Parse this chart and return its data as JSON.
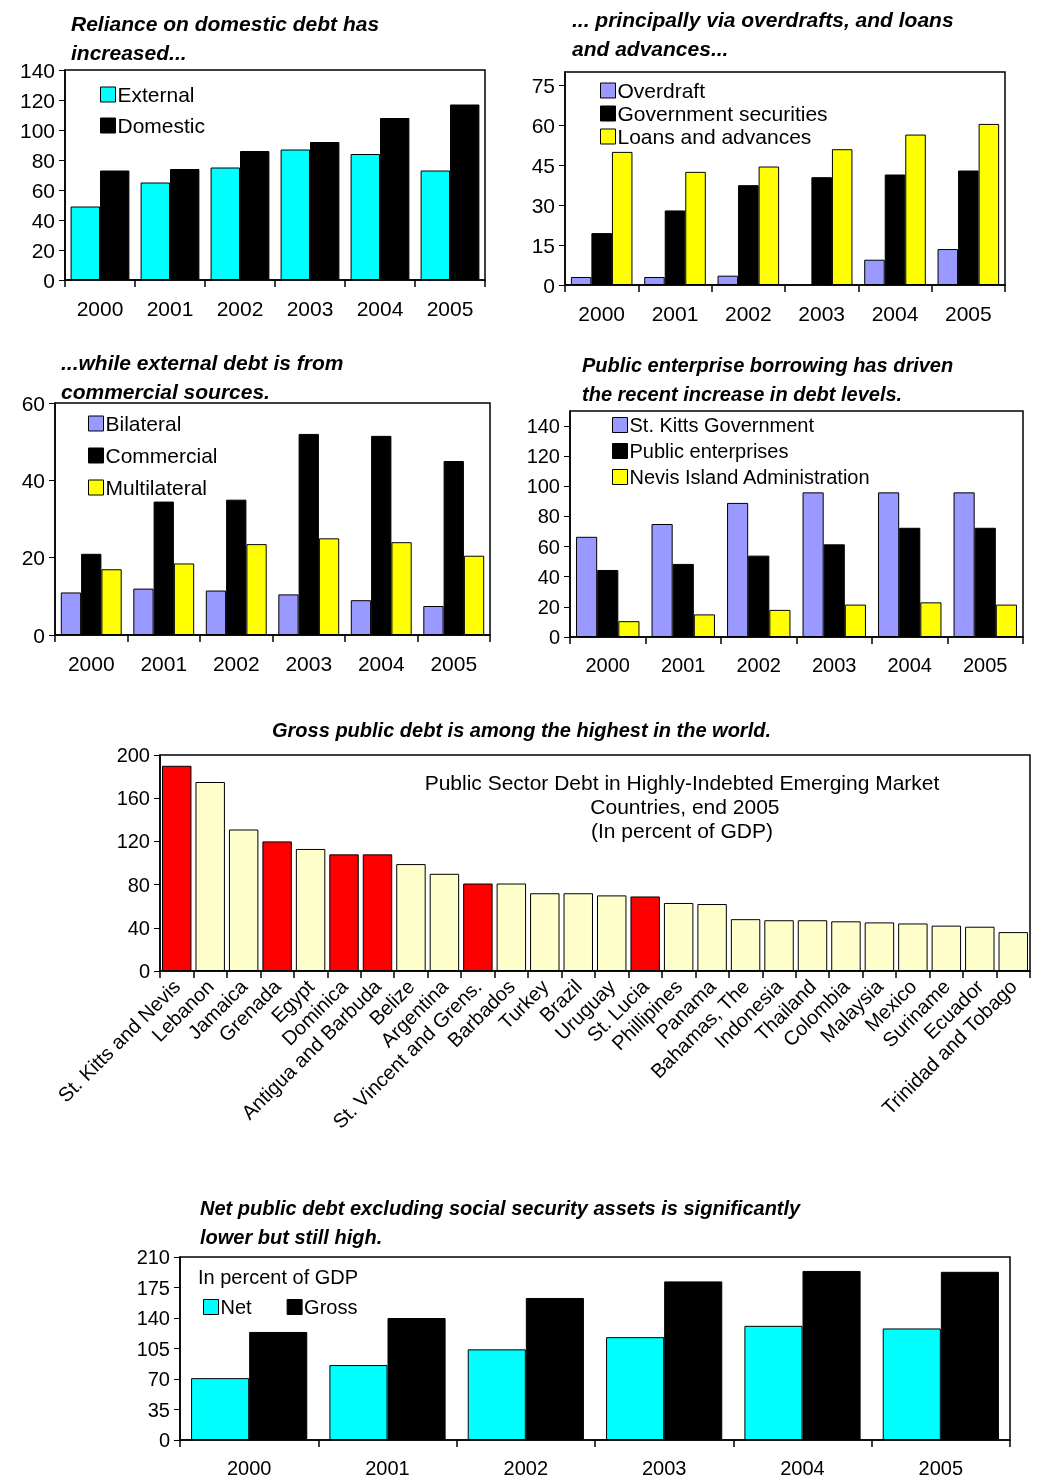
{
  "chart_data": [
    {
      "type": "bar",
      "title": "Reliance on domestic debt has increased...",
      "categories": [
        "2000",
        "2001",
        "2002",
        "2003",
        "2004",
        "2005"
      ],
      "ylim": [
        0,
        140
      ],
      "yticks": [
        0,
        20,
        40,
        60,
        80,
        100,
        120,
        140
      ],
      "legend": "top left",
      "grid": false,
      "series": [
        {
          "name": "External",
          "color": "#00ffff",
          "values": [
            49,
            65,
            75,
            87,
            84,
            73
          ]
        },
        {
          "name": "Domestic",
          "color": "#000000",
          "values": [
            73,
            74,
            86,
            92,
            108,
            117
          ]
        }
      ]
    },
    {
      "type": "bar",
      "title": "... principally via overdrafts, and loans and advances...",
      "categories": [
        "2000",
        "2001",
        "2002",
        "2003",
        "2004",
        "2005"
      ],
      "ylim": [
        0,
        80
      ],
      "yticks": [
        0,
        15,
        30,
        45,
        60,
        75
      ],
      "legend": "top left",
      "grid": false,
      "series": [
        {
          "name": "Overdraft",
          "color": "#9999ff",
          "values": [
            3,
            3,
            3.5,
            null,
            9.5,
            13.5
          ]
        },
        {
          "name": "Government securities",
          "color": "#000000",
          "values": [
            19.5,
            28,
            37.5,
            40.5,
            41.5,
            43
          ]
        },
        {
          "name": "Loans and advances",
          "color": "#ffff00",
          "values": [
            50,
            42.5,
            44.5,
            51,
            56.5,
            60.5
          ]
        }
      ]
    },
    {
      "type": "bar",
      "title": "...while external debt is from commercial sources.",
      "categories": [
        "2000",
        "2001",
        "2002",
        "2003",
        "2004",
        "2005"
      ],
      "ylim": [
        0,
        60
      ],
      "yticks": [
        0,
        20,
        40,
        60
      ],
      "legend": "top left",
      "grid": false,
      "series": [
        {
          "name": "Bilateral",
          "color": "#9999ff",
          "values": [
            11,
            12,
            11.5,
            10.5,
            9,
            7.5
          ]
        },
        {
          "name": "Commercial",
          "color": "#000000",
          "values": [
            21,
            34.5,
            35,
            52,
            51.5,
            45
          ]
        },
        {
          "name": "Multilateral",
          "color": "#ffff00",
          "values": [
            17,
            18.5,
            23.5,
            25,
            24,
            20.5
          ]
        }
      ]
    },
    {
      "type": "bar",
      "title": "Public enterprise borrowing has driven the recent increase in debt levels.",
      "categories": [
        "2000",
        "2001",
        "2002",
        "2003",
        "2004",
        "2005"
      ],
      "ylim": [
        0,
        150
      ],
      "yticks": [
        0,
        20,
        40,
        60,
        80,
        100,
        120,
        140
      ],
      "legend": "top left",
      "grid": false,
      "series": [
        {
          "name": "St. Kitts Government",
          "color": "#9999ff",
          "values": [
            66.5,
            75,
            89,
            96,
            96,
            96
          ]
        },
        {
          "name": "Public enterprises",
          "color": "#000000",
          "values": [
            44.5,
            48.5,
            54,
            61.5,
            72.5,
            72.5
          ]
        },
        {
          "name": "Nevis Island Administration",
          "color": "#ffff00",
          "values": [
            10.5,
            15,
            18,
            21.5,
            23,
            21.5
          ]
        }
      ]
    },
    {
      "type": "bar",
      "title": "Gross public debt is among the highest in the world.",
      "annotations": [
        "Public Sector Debt in Highly-Indebted Emerging Market Countries, end 2005\n(In percent of GDP)"
      ],
      "categories": [
        "St. Kitts and Nevis",
        "Lebanon",
        "Jamaica",
        "Grenada",
        "Egypt",
        "Dominica",
        "Antigua and Barbuda",
        "Belize",
        "Argentina",
        "St. Vincent and Grens.",
        "Barbados",
        "Turkey",
        "Brazil",
        "Uruguay",
        "St. Lucia",
        "Phillipines",
        "Panama",
        "Bahamas, The",
        "Indonesia",
        "Thailand",
        "Colombia",
        "Malaysia",
        "Mexico",
        "Suriname",
        "Ecuador",
        "Trinidad and Tobago"
      ],
      "ylim": [
        0,
        200
      ],
      "yticks": [
        0,
        40,
        80,
        120,
        160,
        200
      ],
      "grid": false,
      "legend": false,
      "values": [
        190,
        175,
        131,
        120,
        113,
        108,
        108,
        99,
        90,
        81,
        81,
        72,
        72,
        70,
        69,
        63,
        62,
        48,
        47,
        47,
        46,
        45,
        44,
        42,
        41,
        36
      ],
      "colors": [
        "#ff0000",
        "#ffffcc",
        "#ffffcc",
        "#ff0000",
        "#ffffcc",
        "#ff0000",
        "#ff0000",
        "#ffffcc",
        "#ffffcc",
        "#ff0000",
        "#ffffcc",
        "#ffffcc",
        "#ffffcc",
        "#ffffcc",
        "#ff0000",
        "#ffffcc",
        "#ffffcc",
        "#ffffcc",
        "#ffffcc",
        "#ffffcc",
        "#ffffcc",
        "#ffffcc",
        "#ffffcc",
        "#ffffcc",
        "#ffffcc",
        "#ffffcc"
      ]
    },
    {
      "type": "bar",
      "title": "Net public debt excluding social security assets is significantly lower but still high.",
      "legend_title": "In percent of GDP",
      "categories": [
        "2000",
        "2001",
        "2002",
        "2003",
        "2004",
        "2005"
      ],
      "ylim": [
        0,
        210
      ],
      "yticks": [
        0,
        35,
        70,
        105,
        140,
        175,
        210
      ],
      "legend": "top left",
      "grid": false,
      "series": [
        {
          "name": "Net",
          "color": "#00ffff",
          "values": [
            71,
            86,
            104,
            118,
            131,
            128
          ]
        },
        {
          "name": "Gross",
          "color": "#000000",
          "values": [
            124,
            140,
            163,
            182,
            194,
            193
          ]
        }
      ]
    }
  ]
}
